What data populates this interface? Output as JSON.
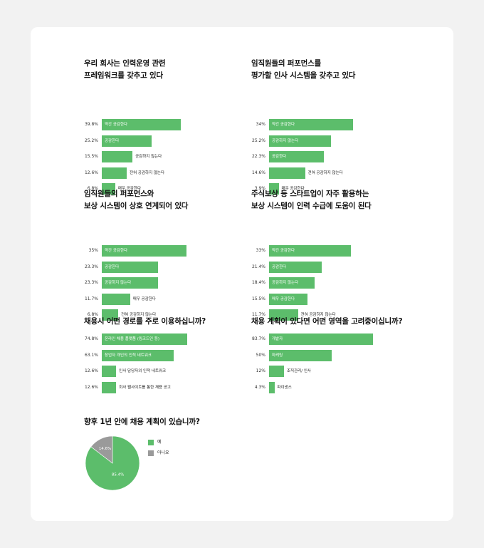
{
  "colors": {
    "bar": "#5cbd6b",
    "pie_yes": "#5cbd6b",
    "pie_no": "#9a9a9a",
    "background": "#f2f2f2",
    "card": "#ffffff"
  },
  "chart_data": [
    {
      "type": "bar",
      "title": "우리 회사는 인력운영 관련\n프레임워크를 갖추고 있다",
      "categories": [
        "약간 공감한다",
        "공감한다",
        "공감하지 않는다",
        "전혀 공감하지 않는다",
        "매우 공감한다"
      ],
      "values": [
        39.8,
        25.2,
        15.5,
        12.6,
        6.8
      ],
      "value_labels": [
        "39.8%",
        "25.2%",
        "15.5%",
        "12.6%",
        "6.8%"
      ],
      "unit": "%"
    },
    {
      "type": "bar",
      "title": "임직원들의 퍼포먼스를\n평가할 인사 시스템을 갖추고 있다",
      "categories": [
        "약간 공감한다",
        "공감하지 않는다",
        "공감한다",
        "전혀 공감하지 않는다",
        "매우 공감한다"
      ],
      "values": [
        34,
        25.2,
        22.3,
        14.6,
        3.9
      ],
      "value_labels": [
        "34%",
        "25.2%",
        "22.3%",
        "14.6%",
        "3.9%"
      ],
      "unit": "%"
    },
    {
      "type": "bar",
      "title": "임직원들의 퍼포먼스와\n보상 시스템이 상호 연계되어 있다",
      "categories": [
        "약간 공감한다",
        "공감한다",
        "공감하지 않는다",
        "매우 공감한다",
        "전혀 공감하지 않는다"
      ],
      "values": [
        35,
        23.3,
        23.3,
        11.7,
        6.8
      ],
      "value_labels": [
        "35%",
        "23.3%",
        "23.3%",
        "11.7%",
        "6.8%"
      ],
      "unit": "%"
    },
    {
      "type": "bar",
      "title": "주식보상 등 스타트업이 자주 활용하는\n보상 시스템이 인력 수급에 도움이 된다",
      "categories": [
        "약간 공감한다",
        "공감한다",
        "공감하지 않는다",
        "매우 공감한다",
        "전혀 공감하지 않는다"
      ],
      "values": [
        33,
        21.4,
        18.4,
        15.5,
        11.7
      ],
      "value_labels": [
        "33%",
        "21.4%",
        "18.4%",
        "15.5%",
        "11.7%"
      ],
      "unit": "%"
    },
    {
      "type": "bar",
      "title": "채용시 어떤 경로를 주로 이용하십니까?",
      "categories": [
        "온라인 채용 플랫폼 (링크드인 등)",
        "창업자 개인의 인적 네트워크",
        "인사 담당자의 인적 네트워크",
        "회사 웹사이트를 통한 채용 공고"
      ],
      "values": [
        74.8,
        63.1,
        12.6,
        12.6
      ],
      "value_labels": [
        "74.8%",
        "63.1%",
        "12.6%",
        "12.6%"
      ],
      "unit": "%"
    },
    {
      "type": "bar",
      "title": "채용 계획이 있다면 어떤 영역을 고려중이십니까?",
      "categories": [
        "개발자",
        "마케팅",
        "조직관리/ 인사",
        "파이낸스"
      ],
      "values": [
        83.7,
        50,
        12,
        4.3
      ],
      "value_labels": [
        "83.7%",
        "50%",
        "12%",
        "4.3%"
      ],
      "unit": "%"
    },
    {
      "type": "pie",
      "title": "향후 1년 안에 채용 계획이 있습니까?",
      "categories": [
        "예",
        "아니요"
      ],
      "values": [
        85.4,
        14.6
      ],
      "value_labels": [
        "85.4%",
        "14.6%"
      ],
      "legend": "right",
      "unit": "%"
    }
  ]
}
